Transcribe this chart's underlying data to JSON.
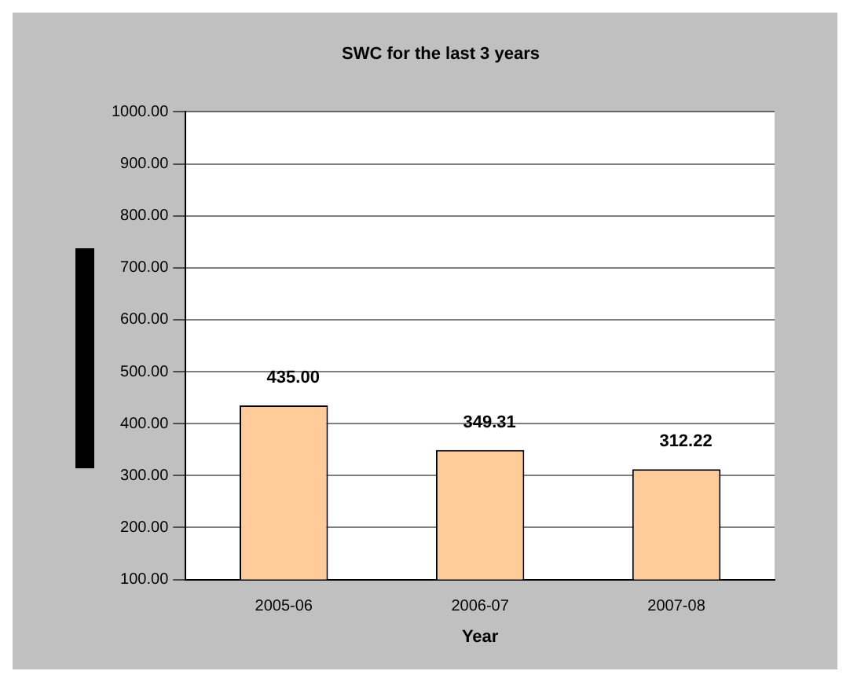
{
  "chart_data": {
    "type": "bar",
    "title": "SWC for the last 3 years",
    "xlabel": "Year",
    "categories": [
      "2005-06",
      "2006-07",
      "2007-08"
    ],
    "values": [
      435.0,
      349.31,
      312.22
    ],
    "value_labels": [
      "435.00",
      "349.31",
      "312.22"
    ],
    "color": "#ffcc99",
    "ylim": [
      100,
      1000
    ],
    "yticks": [
      {
        "value": 100,
        "label": "100.00"
      },
      {
        "value": 200,
        "label": "200.00"
      },
      {
        "value": 300,
        "label": "300.00"
      },
      {
        "value": 400,
        "label": "400.00"
      },
      {
        "value": 500,
        "label": "500.00"
      },
      {
        "value": 600,
        "label": "600.00"
      },
      {
        "value": 700,
        "label": "700.00"
      },
      {
        "value": 800,
        "label": "800.00"
      },
      {
        "value": 900,
        "label": "900.00"
      },
      {
        "value": 1000,
        "label": "1000.00"
      }
    ],
    "grid": "y",
    "legend": false
  }
}
